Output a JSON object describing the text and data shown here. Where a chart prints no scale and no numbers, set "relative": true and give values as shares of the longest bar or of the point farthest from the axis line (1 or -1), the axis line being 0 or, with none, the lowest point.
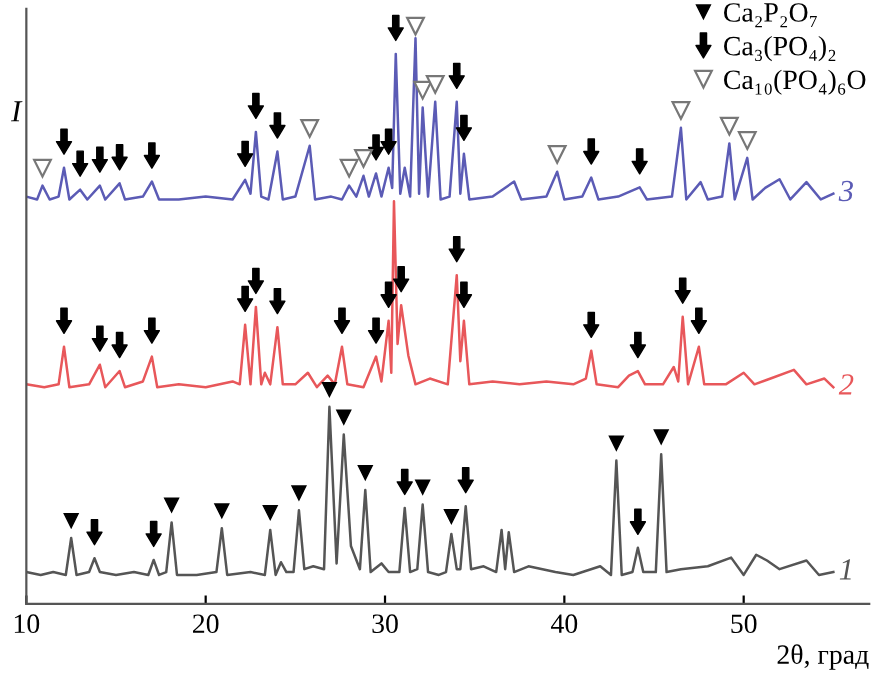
{
  "chart_data": {
    "type": "line",
    "relative": true,
    "xlabel": "2θ, град",
    "ylabel": "I",
    "xlim": [
      10,
      57
    ],
    "xticks": [
      10,
      20,
      30,
      40,
      50
    ],
    "grid": false,
    "legend": "top right",
    "marker": "none",
    "line_style": "solid",
    "series": [
      {
        "name": "1",
        "color": "#555555",
        "x": [
          10.0,
          10.8,
          11.5,
          12.2,
          12.5,
          12.8,
          13.5,
          13.8,
          14.1,
          15.0,
          16.0,
          16.8,
          17.1,
          17.4,
          17.8,
          18.1,
          18.4,
          19.5,
          20.6,
          20.9,
          21.2,
          22.5,
          23.3,
          23.6,
          23.9,
          24.2,
          24.5,
          24.9,
          25.2,
          25.5,
          26.0,
          26.6,
          26.9,
          27.3,
          27.7,
          28.1,
          28.6,
          28.9,
          29.2,
          29.8,
          30.2,
          30.8,
          31.1,
          31.4,
          31.8,
          32.1,
          32.4,
          33.0,
          33.4,
          33.7,
          34.0,
          34.2,
          34.5,
          34.8,
          35.5,
          36.2,
          36.5,
          36.7,
          36.9,
          37.2,
          38.0,
          39.5,
          40.5,
          42.0,
          42.6,
          42.9,
          43.2,
          43.8,
          44.1,
          44.4,
          45.1,
          45.4,
          45.7,
          46.5,
          48.0,
          49.3,
          50.0,
          50.7,
          51.3,
          52.0,
          53.5,
          54.2,
          55.0
        ],
        "values": [
          0.055,
          0.05,
          0.055,
          0.05,
          0.114,
          0.05,
          0.055,
          0.079,
          0.055,
          0.05,
          0.055,
          0.05,
          0.076,
          0.05,
          0.055,
          0.141,
          0.05,
          0.05,
          0.055,
          0.131,
          0.05,
          0.055,
          0.05,
          0.128,
          0.05,
          0.072,
          0.055,
          0.055,
          0.162,
          0.06,
          0.065,
          0.06,
          0.341,
          0.07,
          0.293,
          0.1,
          0.06,
          0.197,
          0.055,
          0.07,
          0.055,
          0.055,
          0.166,
          0.055,
          0.06,
          0.172,
          0.055,
          0.05,
          0.055,
          0.121,
          0.06,
          0.06,
          0.169,
          0.06,
          0.065,
          0.055,
          0.128,
          0.06,
          0.124,
          0.055,
          0.065,
          0.055,
          0.05,
          0.065,
          0.05,
          0.248,
          0.05,
          0.055,
          0.097,
          0.055,
          0.055,
          0.259,
          0.055,
          0.06,
          0.065,
          0.08,
          0.05,
          0.085,
          0.075,
          0.06,
          0.075,
          0.05,
          0.055
        ]
      },
      {
        "name": "2",
        "color": "#e8575a",
        "x": [
          10.0,
          11.0,
          11.8,
          12.1,
          12.4,
          13.5,
          14.1,
          14.4,
          15.2,
          15.5,
          16.5,
          17.0,
          17.3,
          18.5,
          20.0,
          21.5,
          21.9,
          22.2,
          22.5,
          22.8,
          23.1,
          23.3,
          23.6,
          24.0,
          24.3,
          25.0,
          25.7,
          26.2,
          26.8,
          27.2,
          27.6,
          27.9,
          28.8,
          29.5,
          29.8,
          30.2,
          30.35,
          30.5,
          30.7,
          30.9,
          31.3,
          31.7,
          32.5,
          33.5,
          34.0,
          34.2,
          34.4,
          34.7,
          36.0,
          37.5,
          39.0,
          40.5,
          41.2,
          41.5,
          41.8,
          43.0,
          43.6,
          44.1,
          44.5,
          45.5,
          46.1,
          46.35,
          46.6,
          46.9,
          47.5,
          47.8,
          49.0,
          50.0,
          50.6,
          51.5,
          52.8,
          53.5,
          54.5,
          55.0
        ],
        "values": [
          0.38,
          0.375,
          0.38,
          0.445,
          0.375,
          0.38,
          0.414,
          0.375,
          0.403,
          0.375,
          0.385,
          0.428,
          0.375,
          0.38,
          0.375,
          0.385,
          0.38,
          0.483,
          0.38,
          0.514,
          0.38,
          0.4,
          0.38,
          0.479,
          0.38,
          0.38,
          0.4,
          0.375,
          0.395,
          0.38,
          0.445,
          0.38,
          0.375,
          0.428,
          0.385,
          0.49,
          0.4,
          0.697,
          0.45,
          0.517,
          0.43,
          0.38,
          0.39,
          0.38,
          0.569,
          0.42,
          0.49,
          0.38,
          0.385,
          0.38,
          0.385,
          0.38,
          0.39,
          0.438,
          0.38,
          0.375,
          0.395,
          0.403,
          0.38,
          0.38,
          0.41,
          0.385,
          0.497,
          0.38,
          0.445,
          0.38,
          0.38,
          0.4,
          0.38,
          0.39,
          0.405,
          0.38,
          0.39,
          0.375
        ]
      },
      {
        "name": "3",
        "color": "#5b5bb5",
        "x": [
          10.0,
          10.6,
          10.9,
          11.3,
          11.8,
          12.1,
          12.4,
          13.0,
          13.4,
          14.1,
          14.4,
          15.2,
          15.5,
          16.5,
          17.0,
          17.4,
          18.5,
          20.0,
          21.5,
          22.2,
          22.5,
          22.8,
          23.1,
          23.5,
          24.0,
          24.3,
          25.0,
          25.8,
          26.1,
          27.0,
          27.6,
          28.0,
          28.4,
          28.8,
          29.1,
          29.5,
          29.8,
          30.2,
          30.4,
          30.6,
          30.85,
          31.1,
          31.4,
          31.7,
          31.9,
          32.1,
          32.4,
          32.8,
          33.1,
          33.6,
          34.0,
          34.2,
          34.4,
          34.7,
          36.0,
          37.2,
          37.6,
          39.0,
          39.6,
          40.0,
          41.0,
          41.5,
          41.9,
          43.0,
          44.2,
          44.6,
          46.0,
          46.5,
          46.8,
          47.6,
          48.0,
          48.8,
          49.2,
          49.5,
          50.2,
          50.5,
          51.2,
          52.0,
          52.6,
          53.5,
          54.3,
          55.0
        ],
        "values": [
          0.705,
          0.7,
          0.724,
          0.7,
          0.705,
          0.755,
          0.7,
          0.717,
          0.7,
          0.724,
          0.7,
          0.728,
          0.7,
          0.705,
          0.731,
          0.7,
          0.7,
          0.705,
          0.7,
          0.734,
          0.71,
          0.817,
          0.705,
          0.7,
          0.783,
          0.7,
          0.705,
          0.793,
          0.7,
          0.705,
          0.7,
          0.724,
          0.705,
          0.741,
          0.705,
          0.745,
          0.705,
          0.755,
          0.72,
          0.952,
          0.71,
          0.755,
          0.705,
          0.979,
          0.71,
          0.859,
          0.705,
          0.869,
          0.7,
          0.705,
          0.869,
          0.71,
          0.779,
          0.7,
          0.705,
          0.731,
          0.7,
          0.705,
          0.748,
          0.7,
          0.705,
          0.738,
          0.7,
          0.705,
          0.721,
          0.7,
          0.705,
          0.824,
          0.7,
          0.73,
          0.7,
          0.705,
          0.797,
          0.7,
          0.772,
          0.7,
          0.72,
          0.735,
          0.7,
          0.73,
          0.7,
          0.71
        ]
      },
      {
        "name": "Ca₂P₂O₇",
        "type": "scatter",
        "marker": "triangle",
        "color": "#000000",
        "x": [
          12.5,
          18.1,
          20.9,
          23.6,
          25.2,
          26.9,
          27.7,
          28.9,
          32.1,
          33.7,
          42.9,
          45.4
        ],
        "values": [
          0.144,
          0.171,
          0.161,
          0.158,
          0.192,
          0.371,
          0.323,
          0.227,
          0.202,
          0.151,
          0.278,
          0.289
        ]
      },
      {
        "name": "Ca₃(PO₄)₂",
        "type": "scatter",
        "color": "#000000",
        "x": [
          13.8,
          17.1,
          31.1,
          34.5,
          44.1,
          12.1,
          14.1,
          15.2,
          17.0,
          22.2,
          22.8,
          24.0,
          27.6,
          29.5,
          30.2,
          30.9,
          34.0,
          34.4,
          41.5,
          44.1,
          46.6,
          47.5,
          12.1,
          13.0,
          14.1,
          15.2,
          17.0,
          22.2,
          22.8,
          24.0,
          29.5,
          30.2,
          30.6,
          34.0,
          34.4,
          41.5,
          44.2
        ],
        "values": [
          0.124,
          0.121,
          0.211,
          0.214,
          0.142,
          0.49,
          0.459,
          0.448,
          0.473,
          0.528,
          0.559,
          0.524,
          0.49,
          0.473,
          0.535,
          0.562,
          0.614,
          0.535,
          0.483,
          0.448,
          0.542,
          0.49,
          0.8,
          0.762,
          0.769,
          0.773,
          0.776,
          0.779,
          0.862,
          0.828,
          0.79,
          0.8,
          0.997,
          0.914,
          0.824,
          0.783,
          0.766
        ]
      },
      {
        "name": "Ca₁₀(PO₄)₆O",
        "type": "scatter",
        "marker": "triangle_open",
        "color": "#777777",
        "x": [
          10.9,
          25.8,
          28.0,
          28.8,
          31.7,
          32.1,
          32.8,
          39.6,
          46.5,
          49.2,
          50.2
        ],
        "values": [
          0.754,
          0.823,
          0.754,
          0.771,
          1.0,
          0.889,
          0.899,
          0.778,
          0.854,
          0.827,
          0.802
        ]
      }
    ]
  }
}
